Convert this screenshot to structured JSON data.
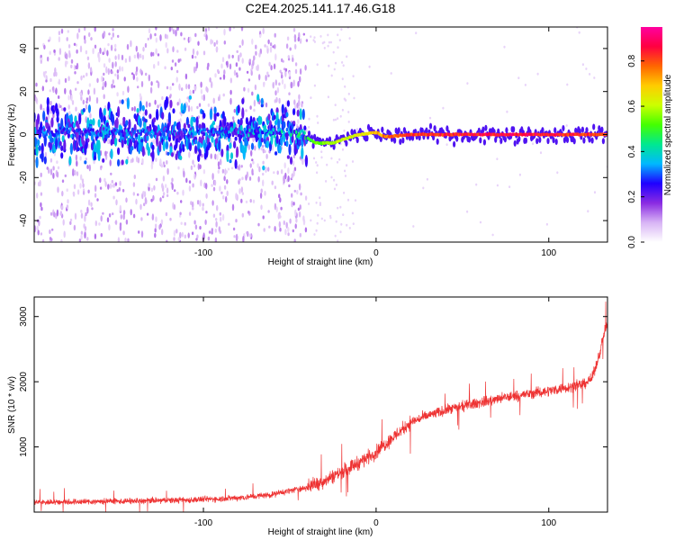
{
  "title": "C2E4.2025.141.17.46.G18",
  "chart_data": [
    {
      "type": "heatmap",
      "xlabel": "Height of straight line (km)",
      "ylabel": "Frequency (Hz)",
      "xlim": [
        -198,
        134
      ],
      "ylim": [
        -50,
        50
      ],
      "xticks": [
        -100,
        0,
        100
      ],
      "yticks": [
        -40,
        -20,
        0,
        20,
        40
      ],
      "colorbar": {
        "label": "Normalized spectral amplitude",
        "range": [
          0.0,
          0.95
        ],
        "ticks": [
          0.0,
          0.2,
          0.4,
          0.6,
          0.8
        ],
        "colors": [
          "#ffffff",
          "#d8b4f5",
          "#8a2be2",
          "#1f00ff",
          "#00b8ff",
          "#00e890",
          "#44ff00",
          "#ccff00",
          "#ffcc00",
          "#ff6600",
          "#ff0040",
          "#ff00a0"
        ]
      },
      "ridge": [
        {
          "x": -198,
          "y": 1,
          "amp": 0.32
        },
        {
          "x": -150,
          "y": 1,
          "amp": 0.32
        },
        {
          "x": -100,
          "y": 1,
          "amp": 0.33
        },
        {
          "x": -60,
          "y": 1,
          "amp": 0.36
        },
        {
          "x": -45,
          "y": 1,
          "amp": 0.42
        },
        {
          "x": -35,
          "y": -4,
          "amp": 0.55
        },
        {
          "x": -25,
          "y": -4,
          "amp": 0.6
        },
        {
          "x": -18,
          "y": -2,
          "amp": 0.62
        },
        {
          "x": -10,
          "y": 0,
          "amp": 0.66
        },
        {
          "x": 0,
          "y": 1,
          "amp": 0.72
        },
        {
          "x": 5,
          "y": -1,
          "amp": 0.78
        },
        {
          "x": 20,
          "y": 0,
          "amp": 0.85
        },
        {
          "x": 60,
          "y": 0,
          "amp": 0.88
        },
        {
          "x": 100,
          "y": 0,
          "amp": 0.88
        },
        {
          "x": 134,
          "y": 0,
          "amp": 0.83
        }
      ]
    },
    {
      "type": "line",
      "xlabel": "Height of straight line (km)",
      "ylabel": "SNR (10 * v/v)",
      "xlim": [
        -198,
        134
      ],
      "ylim": [
        0,
        3300
      ],
      "xticks": [
        -100,
        0,
        100
      ],
      "yticks": [
        1000,
        2000,
        3000
      ],
      "color": "#ee3333",
      "x": [
        -198,
        -170,
        -140,
        -110,
        -90,
        -75,
        -60,
        -50,
        -40,
        -30,
        -20,
        -10,
        0,
        10,
        20,
        30,
        40,
        50,
        60,
        70,
        80,
        90,
        100,
        110,
        120,
        125,
        128,
        130,
        132,
        134
      ],
      "values": [
        150,
        160,
        170,
        185,
        205,
        230,
        270,
        330,
        380,
        480,
        620,
        760,
        920,
        1150,
        1380,
        1480,
        1560,
        1620,
        1680,
        1730,
        1780,
        1820,
        1860,
        1910,
        1960,
        2050,
        2300,
        2500,
        2750,
        2900
      ]
    }
  ]
}
